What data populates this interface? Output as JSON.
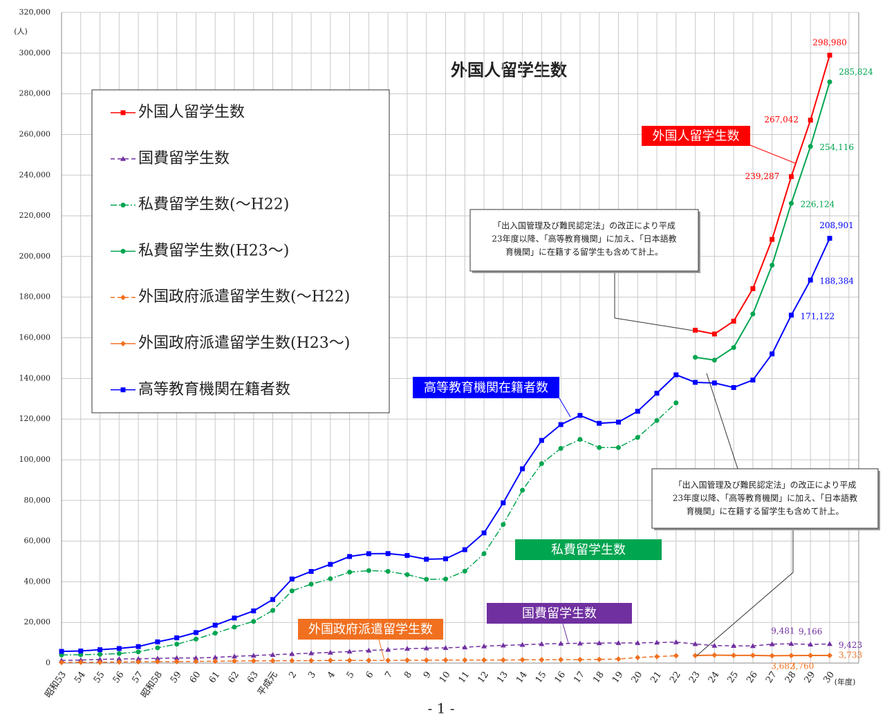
{
  "chart_data": {
    "type": "line",
    "title": "外国人留学生数",
    "y_unit": "(人)",
    "x_unit": "(年度)",
    "page_number": "- 1 -",
    "categories": [
      "昭和53",
      "54",
      "55",
      "56",
      "57",
      "昭和58",
      "59",
      "60",
      "61",
      "62",
      "63",
      "平成元",
      "2",
      "3",
      "4",
      "5",
      "6",
      "7",
      "8",
      "9",
      "10",
      "11",
      "12",
      "13",
      "14",
      "15",
      "16",
      "17",
      "18",
      "19",
      "20",
      "21",
      "22",
      "23",
      "24",
      "25",
      "26",
      "27",
      "28",
      "29",
      "30"
    ],
    "ylim": [
      0,
      320000
    ],
    "yticks": [
      0,
      {
        "value": 20000,
        "label": "20,000"
      },
      {
        "value": 40000,
        "label": "40,000"
      },
      {
        "value": 60000,
        "label": "60,000"
      },
      {
        "value": 80000,
        "label": "80,000"
      },
      {
        "value": 100000,
        "label": "100,000"
      },
      {
        "value": 120000,
        "label": "120,000"
      },
      {
        "value": 140000,
        "label": "140,000"
      },
      {
        "value": 160000,
        "label": "160,000"
      },
      {
        "value": 180000,
        "label": "180,000"
      },
      {
        "value": 200000,
        "label": "200,000"
      },
      {
        "value": 220000,
        "label": "220,000"
      },
      {
        "value": 240000,
        "label": "240,000"
      },
      {
        "value": 260000,
        "label": "260,000"
      },
      {
        "value": 280000,
        "label": "280,000"
      },
      {
        "value": 300000,
        "label": "300,000"
      },
      {
        "value": 320000,
        "label": "320,000"
      }
    ],
    "grid": true,
    "series": [
      {
        "name": "外国人留学生数",
        "color": "#ff0000",
        "dash": "solid",
        "marker": "square",
        "values": [
          null,
          null,
          null,
          null,
          null,
          null,
          null,
          null,
          null,
          null,
          null,
          null,
          null,
          null,
          null,
          null,
          null,
          null,
          null,
          null,
          null,
          null,
          null,
          null,
          null,
          null,
          null,
          null,
          null,
          null,
          null,
          null,
          null,
          163697,
          161848,
          168145,
          184155,
          208379,
          239287,
          267042,
          298980
        ],
        "value_labels": [
          null,
          null,
          null,
          null,
          null,
          null,
          null,
          null,
          null,
          null,
          null,
          null,
          null,
          null,
          null,
          null,
          null,
          null,
          null,
          null,
          null,
          null,
          null,
          null,
          null,
          null,
          null,
          null,
          null,
          null,
          null,
          null,
          null,
          null,
          null,
          null,
          null,
          null,
          "239,287",
          "267,042",
          "298,980"
        ]
      },
      {
        "name": "国費留学生数",
        "color": "#7030a0",
        "dash": "dashed",
        "marker": "triangle",
        "values": [
          1300,
          1500,
          1800,
          2000,
          2100,
          2300,
          2500,
          2500,
          2800,
          3300,
          3700,
          4100,
          4500,
          4900,
          5200,
          5700,
          6200,
          6600,
          7100,
          7300,
          7500,
          7800,
          8300,
          8700,
          9000,
          9400,
          9600,
          9700,
          9800,
          9900,
          9900,
          10100,
          10300,
          9400,
          8600,
          8500,
          8400,
          9300,
          9481,
          9166,
          9423
        ],
        "value_labels": [
          null,
          null,
          null,
          null,
          null,
          null,
          null,
          null,
          null,
          null,
          null,
          null,
          null,
          null,
          null,
          null,
          null,
          null,
          null,
          null,
          null,
          null,
          null,
          null,
          null,
          null,
          null,
          null,
          null,
          null,
          null,
          null,
          null,
          null,
          null,
          null,
          null,
          null,
          "9,481",
          "9,166",
          "9,423"
        ]
      },
      {
        "name": "私費留学生数(～H22)",
        "color": "#00a550",
        "dash": "dashdot",
        "marker": "circle",
        "values": [
          4000,
          4100,
          4300,
          4700,
          5500,
          7500,
          9300,
          11800,
          14700,
          17700,
          20500,
          25900,
          35500,
          38800,
          41500,
          44700,
          45500,
          45100,
          43500,
          41200,
          41300,
          45200,
          53800,
          68200,
          85000,
          98100,
          105600,
          110000,
          106000,
          106000,
          111000,
          119300,
          128000,
          null,
          null,
          null,
          null,
          null,
          null,
          null,
          null
        ]
      },
      {
        "name": "私費留学生数(H23～)",
        "color": "#00a550",
        "dash": "solid",
        "marker": "circle",
        "values": [
          null,
          null,
          null,
          null,
          null,
          null,
          null,
          null,
          null,
          null,
          null,
          null,
          null,
          null,
          null,
          null,
          null,
          null,
          null,
          null,
          null,
          null,
          null,
          null,
          null,
          null,
          null,
          null,
          null,
          null,
          null,
          null,
          null,
          150400,
          149000,
          155200,
          171700,
          195700,
          226124,
          254116,
          285824
        ],
        "value_labels": [
          null,
          null,
          null,
          null,
          null,
          null,
          null,
          null,
          null,
          null,
          null,
          null,
          null,
          null,
          null,
          null,
          null,
          null,
          null,
          null,
          null,
          null,
          null,
          null,
          null,
          null,
          null,
          null,
          null,
          null,
          null,
          null,
          null,
          null,
          null,
          null,
          null,
          null,
          "226,124",
          "254,116",
          "285,824"
        ]
      },
      {
        "name": "外国政府派遣留学生数(～H22)",
        "color": "#f07020",
        "dash": "dashed",
        "marker": "diamond",
        "values": [
          300,
          400,
          400,
          500,
          600,
          700,
          700,
          800,
          900,
          1000,
          1100,
          1100,
          1200,
          1200,
          1300,
          1300,
          1300,
          1300,
          1400,
          1400,
          1500,
          1500,
          1500,
          1500,
          1600,
          1600,
          1700,
          1700,
          1800,
          2000,
          2700,
          3200,
          3600,
          null,
          null,
          null,
          null,
          null,
          null,
          null,
          null
        ]
      },
      {
        "name": "外国政府派遣留学生数(H23～)",
        "color": "#f07020",
        "dash": "solid",
        "marker": "diamond",
        "values": [
          null,
          null,
          null,
          null,
          null,
          null,
          null,
          null,
          null,
          null,
          null,
          null,
          null,
          null,
          null,
          null,
          null,
          null,
          null,
          null,
          null,
          null,
          null,
          null,
          null,
          null,
          null,
          null,
          null,
          null,
          null,
          null,
          null,
          3700,
          3900,
          3800,
          3800,
          3600,
          3682,
          3760,
          3733
        ],
        "value_labels": [
          null,
          null,
          null,
          null,
          null,
          null,
          null,
          null,
          null,
          null,
          null,
          null,
          null,
          null,
          null,
          null,
          null,
          null,
          null,
          null,
          null,
          null,
          null,
          null,
          null,
          null,
          null,
          null,
          null,
          null,
          null,
          null,
          null,
          null,
          null,
          null,
          null,
          null,
          "3,682",
          "3,760",
          "3,733"
        ]
      },
      {
        "name": "高等教育機関在籍者数",
        "color": "#0000ff",
        "dash": "solid",
        "marker": "square",
        "values": [
          5755,
          5933,
          6572,
          7179,
          8116,
          10428,
          12410,
          15009,
          18631,
          22154,
          25643,
          31251,
          41347,
          45066,
          48561,
          52405,
          53787,
          53847,
          52921,
          51047,
          51298,
          55755,
          64011,
          78812,
          95550,
          109508,
          117302,
          121812,
          117927,
          118498,
          123829,
          132720,
          141774,
          138075,
          137756,
          135519,
          139185,
          152062,
          171122,
          188384,
          208901
        ],
        "value_labels": [
          null,
          null,
          null,
          null,
          null,
          null,
          null,
          null,
          null,
          null,
          null,
          null,
          null,
          null,
          null,
          null,
          null,
          null,
          null,
          null,
          null,
          null,
          null,
          null,
          null,
          null,
          null,
          null,
          null,
          null,
          null,
          null,
          null,
          null,
          null,
          null,
          null,
          null,
          "171,122",
          "188,384",
          "208,901"
        ]
      }
    ],
    "callouts": [
      "外国人留学生数",
      "高等教育機関在籍者数",
      "私費留学生数",
      "国費留学生数",
      "外国政府派遣留学生数"
    ],
    "notes": [
      [
        "「出入国管理及び難民認定法」の改正により平成",
        "23年度以降、「高等教育機関」に加え、「日本語教",
        "育機関」に在籍する留学生も含めて計上。"
      ],
      [
        "「出入国管理及び難民認定法」の改正により平成",
        "23年度以降、「高等教育機関」に加え、「日本語教",
        "育機関」に在籍する留学生も含めて計上。"
      ]
    ]
  }
}
